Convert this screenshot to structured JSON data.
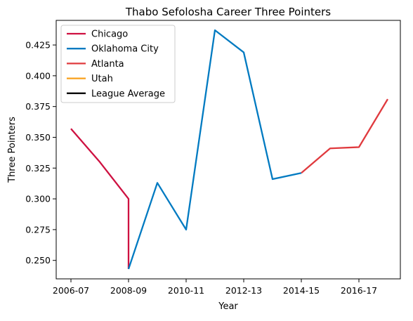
{
  "chart_data": {
    "type": "line",
    "title": "Thabo Sefolosha Career Three Pointers",
    "xlabel": "Year",
    "ylabel": "Three Pointers",
    "x_categories": [
      "2006-07",
      "2007-08",
      "2008-09",
      "2008-09",
      "2009-10",
      "2010-11",
      "2011-12",
      "2012-13",
      "2013-14",
      "2014-15",
      "2015-16",
      "2016-17",
      "2017-18"
    ],
    "x_tick_labels": [
      "2006-07",
      "2008-09",
      "2010-11",
      "2012-13",
      "2014-15",
      "2016-17"
    ],
    "ylim": [
      0.235,
      0.445
    ],
    "y_ticks": [
      0.25,
      0.275,
      0.3,
      0.325,
      0.35,
      0.375,
      0.4,
      0.425
    ],
    "y_tick_labels": [
      "0.250",
      "0.275",
      "0.300",
      "0.325",
      "0.350",
      "0.375",
      "0.400",
      "0.425"
    ],
    "grid": false,
    "legend_position": "top-left",
    "series": [
      {
        "name": "Chicago",
        "color": "#ce1141",
        "points": [
          {
            "x": "2006-07",
            "y": 0.357
          },
          {
            "x": "2007-08",
            "y": 0.33
          },
          {
            "x": "2008-09",
            "y": 0.3
          },
          {
            "x": "2008-09",
            "y": 0.243
          }
        ]
      },
      {
        "name": "Oklahoma City",
        "color": "#007ac1",
        "points": [
          {
            "x": "2008-09",
            "y": 0.243
          },
          {
            "x": "2009-10",
            "y": 0.313
          },
          {
            "x": "2010-11",
            "y": 0.275
          },
          {
            "x": "2011-12",
            "y": 0.437
          },
          {
            "x": "2012-13",
            "y": 0.419
          },
          {
            "x": "2013-14",
            "y": 0.316
          },
          {
            "x": "2014-15",
            "y": 0.321
          }
        ]
      },
      {
        "name": "Atlanta",
        "color": "#e03a3e",
        "points": [
          {
            "x": "2014-15",
            "y": 0.321
          },
          {
            "x": "2015-16",
            "y": 0.341
          },
          {
            "x": "2016-17",
            "y": 0.342
          },
          {
            "x": "2017-18",
            "y": 0.381
          }
        ]
      },
      {
        "name": "Utah",
        "color": "#f9a01b",
        "points": []
      },
      {
        "name": "League Average",
        "color": "#000000",
        "points": []
      }
    ]
  }
}
